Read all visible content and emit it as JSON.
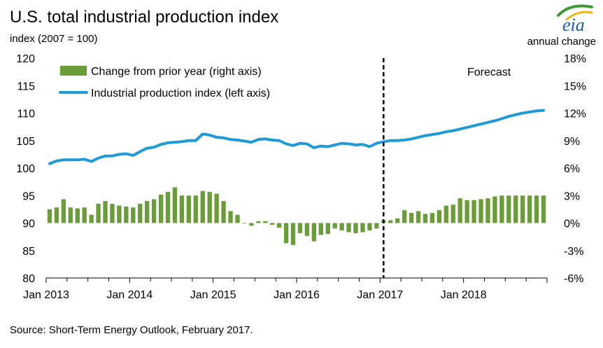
{
  "header": {
    "title": "U.S. total industrial production index",
    "left_unit": "index (2007 = 100)",
    "right_unit": "annual change",
    "logo": "eia"
  },
  "legend": {
    "bars_label": "Change from prior year (right axis)",
    "line_label": "Industrial production index (left axis)",
    "forecast_label": "Forecast"
  },
  "footer": {
    "source": "Source: Short-Term Energy Outlook, February 2017."
  },
  "colors": {
    "bars": "#6b9c3a",
    "line": "#1e9bd7",
    "axis": "#000000",
    "forecast_line": "#000000"
  },
  "chart_data": {
    "type": "bar+line",
    "x_tick_labels": [
      "Jan 2013",
      "Jan 2014",
      "Jan 2015",
      "Jan 2016",
      "Jan 2017",
      "Jan 2018"
    ],
    "x_start": "2013-01",
    "forecast_start": "2017-01",
    "left_axis": {
      "min": 80,
      "max": 120,
      "step": 5,
      "tick_labels": [
        "80",
        "85",
        "90",
        "95",
        "100",
        "105",
        "110",
        "115",
        "120"
      ]
    },
    "right_axis": {
      "min": -6,
      "max": 18,
      "step": 3,
      "tick_labels": [
        "-6%",
        "-3%",
        "0%",
        "3%",
        "6%",
        "9%",
        "12%",
        "15%",
        "18%"
      ]
    },
    "series": [
      {
        "name": "Change from prior year (right axis)",
        "type": "bar",
        "axis": "right",
        "values": [
          1.5,
          1.7,
          2.6,
          1.7,
          1.6,
          1.7,
          0.9,
          2.1,
          2.4,
          2.1,
          1.9,
          1.8,
          1.7,
          2.1,
          2.4,
          2.6,
          3.1,
          3.4,
          3.9,
          3.0,
          3.0,
          3.0,
          3.5,
          3.4,
          3.2,
          2.4,
          1.3,
          0.9,
          0.0,
          -0.3,
          0.2,
          0.2,
          -0.2,
          -0.5,
          -2.2,
          -2.4,
          -1.1,
          -1.4,
          -2.0,
          -1.3,
          -1.2,
          -0.6,
          -0.8,
          -1.0,
          -1.1,
          -1.0,
          -0.8,
          -0.6,
          0.3,
          0.3,
          0.5,
          1.4,
          1.1,
          1.3,
          1.0,
          1.1,
          1.4,
          1.9,
          2.0,
          2.7,
          2.5,
          2.5,
          2.6,
          2.7,
          2.9,
          3.0,
          3.0,
          3.0,
          3.0,
          3.0,
          3.0,
          3.0
        ]
      },
      {
        "name": "Industrial production index (left axis)",
        "type": "line",
        "axis": "left",
        "values": [
          100.8,
          101.3,
          101.5,
          101.5,
          101.5,
          101.6,
          101.2,
          101.8,
          102.2,
          102.2,
          102.5,
          102.6,
          102.3,
          103.0,
          103.6,
          103.8,
          104.3,
          104.6,
          104.7,
          104.8,
          105.0,
          105.0,
          106.2,
          106.0,
          105.6,
          105.5,
          105.2,
          105.1,
          104.9,
          104.7,
          105.2,
          105.3,
          105.1,
          105.0,
          104.4,
          104.1,
          104.5,
          104.4,
          103.7,
          104.0,
          103.9,
          104.2,
          104.5,
          104.4,
          104.2,
          104.3,
          103.9,
          104.5,
          104.8,
          105.0,
          105.0,
          105.1,
          105.3,
          105.6,
          105.9,
          106.1,
          106.3,
          106.6,
          106.8,
          107.1,
          107.4,
          107.7,
          108.0,
          108.3,
          108.6,
          109.0,
          109.4,
          109.7,
          110.0,
          110.2,
          110.4,
          110.5
        ]
      }
    ],
    "legend_position": "top-left",
    "grid": false
  }
}
